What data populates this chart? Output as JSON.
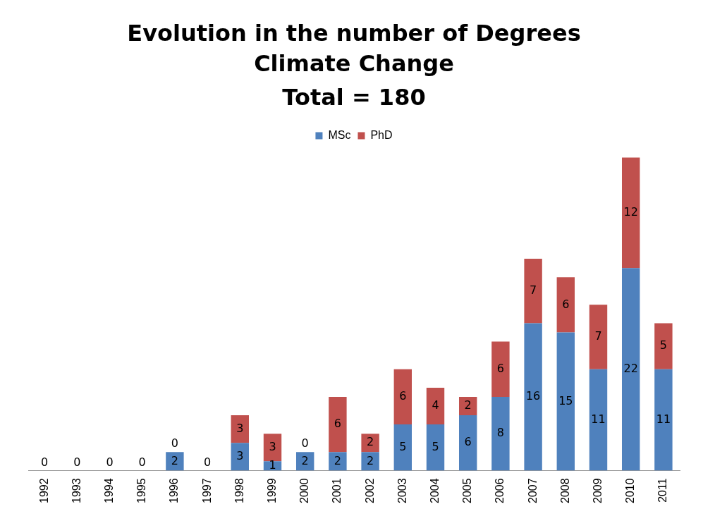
{
  "chart_data": {
    "type": "bar",
    "title": "Evolution in the number of Degrees",
    "subtitle": "Climate Change\nTotal = 180",
    "categories": [
      "1992",
      "1993",
      "1994",
      "1995",
      "1996",
      "1997",
      "1998",
      "1999",
      "2000",
      "2001",
      "2002",
      "2003",
      "2004",
      "2005",
      "2006",
      "2007",
      "2008",
      "2009",
      "2010",
      "2011"
    ],
    "series": [
      {
        "name": "MSc",
        "color": "#4f81bd",
        "values": [
          0,
          0,
          0,
          0,
          2,
          0,
          3,
          1,
          2,
          2,
          2,
          5,
          5,
          6,
          8,
          16,
          15,
          11,
          22,
          11
        ],
        "value_labels": [
          null,
          null,
          null,
          null,
          "2",
          null,
          "3",
          "1",
          "2",
          "2",
          "2",
          "5",
          "5",
          "6",
          "8",
          "16",
          "15",
          "11",
          "22",
          "11"
        ]
      },
      {
        "name": "PhD",
        "color": "#c0504d",
        "values": [
          0,
          0,
          0,
          0,
          0,
          0,
          3,
          3,
          0,
          6,
          2,
          6,
          4,
          2,
          6,
          7,
          6,
          7,
          12,
          5
        ],
        "value_labels": [
          "0",
          "0",
          "0",
          "0",
          "0",
          "0",
          "3",
          "3",
          "0",
          "6",
          "2",
          "6",
          "4",
          "2",
          "6",
          "7",
          "6",
          "7",
          "12",
          "5"
        ]
      }
    ],
    "stacked": true,
    "legend": "top",
    "grid": false
  }
}
